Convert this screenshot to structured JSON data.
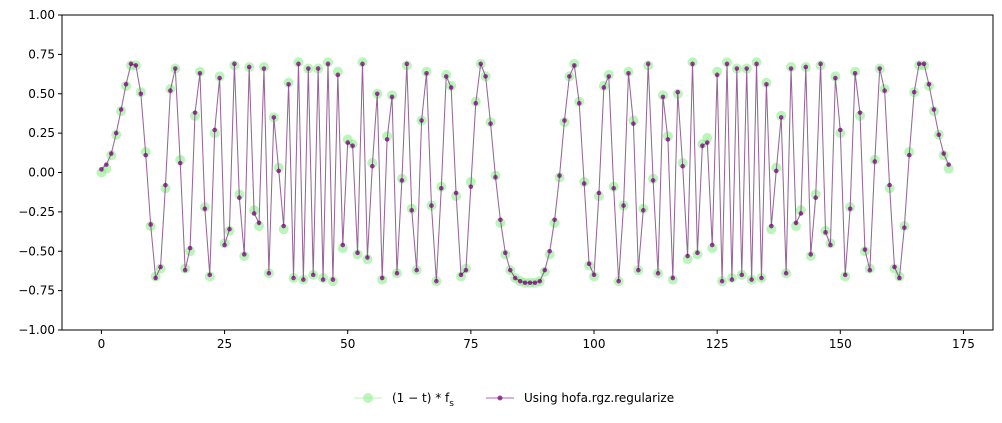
{
  "chart_data": {
    "type": "line",
    "xlabel": "",
    "ylabel": "",
    "xlim": [
      -8,
      181
    ],
    "ylim": [
      -1.0,
      1.0
    ],
    "xticks": [
      0,
      25,
      50,
      75,
      100,
      125,
      150,
      175
    ],
    "yticks": [
      -1.0,
      -0.75,
      -0.5,
      -0.25,
      0.0,
      0.25,
      0.5,
      0.75,
      1.0
    ],
    "xtick_labels": [
      "0",
      "25",
      "50",
      "75",
      "100",
      "125",
      "150",
      "175"
    ],
    "ytick_labels": [
      "−1.00",
      "−0.75",
      "−0.50",
      "−0.25",
      "0.00",
      "0.25",
      "0.50",
      "0.75",
      "1.00"
    ],
    "grid": false,
    "legend_position": "below",
    "x": [
      0,
      1,
      2,
      3,
      4,
      5,
      6,
      7,
      8,
      9,
      10,
      11,
      12,
      13,
      14,
      15,
      16,
      17,
      18,
      19,
      20,
      21,
      22,
      23,
      24,
      25,
      26,
      27,
      28,
      29,
      30,
      31,
      32,
      33,
      34,
      35,
      36,
      37,
      38,
      39,
      40,
      41,
      42,
      43,
      44,
      45,
      46,
      47,
      48,
      49,
      50,
      51,
      52,
      53,
      54,
      55,
      56,
      57,
      58,
      59,
      60,
      61,
      62,
      63,
      64,
      65,
      66,
      67,
      68,
      69,
      70,
      71,
      72,
      73,
      74,
      75,
      76,
      77,
      78,
      79,
      80,
      81,
      82,
      83,
      84,
      85,
      86,
      87,
      88,
      89,
      90,
      91,
      92,
      93,
      94,
      95,
      96,
      97,
      98,
      99,
      100,
      101,
      102,
      103,
      104,
      105,
      106,
      107,
      108,
      109,
      110,
      111,
      112,
      113,
      114,
      115,
      116,
      117,
      118,
      119,
      120,
      121,
      122,
      123,
      124,
      125,
      126,
      127,
      128,
      129,
      130,
      131,
      132,
      133,
      134,
      135,
      136,
      137,
      138,
      139,
      140,
      141,
      142,
      143,
      144,
      145,
      146,
      147,
      148,
      149,
      150,
      151,
      152,
      153,
      154,
      155,
      156,
      157,
      158,
      159,
      160,
      161,
      162,
      163,
      164,
      165,
      166,
      167,
      168,
      169,
      170,
      171,
      172
    ],
    "series": [
      {
        "name": "(1 − t) * f_s",
        "legend_label": "(1 − t) * f",
        "legend_sub": "s",
        "color": "#90ee90",
        "style": "line-with-circle-markers",
        "values": [
          0.0,
          0.025,
          0.11,
          0.24,
          0.39,
          0.55,
          0.68,
          0.68,
          0.51,
          0.13,
          -0.34,
          -0.66,
          -0.61,
          -0.1,
          0.53,
          0.66,
          0.08,
          -0.61,
          -0.5,
          0.36,
          0.64,
          -0.22,
          -0.66,
          0.25,
          0.61,
          -0.45,
          -0.37,
          0.68,
          -0.14,
          -0.53,
          0.67,
          -0.24,
          -0.34,
          0.67,
          -0.64,
          0.35,
          0.03,
          -0.36,
          0.57,
          -0.67,
          0.7,
          -0.68,
          0.66,
          -0.65,
          0.66,
          -0.67,
          0.7,
          -0.69,
          0.64,
          -0.48,
          0.21,
          0.18,
          -0.52,
          0.7,
          -0.55,
          0.06,
          0.5,
          -0.68,
          0.23,
          0.49,
          -0.64,
          -0.04,
          0.68,
          -0.23,
          -0.62,
          0.33,
          0.64,
          -0.21,
          -0.69,
          -0.09,
          0.62,
          0.55,
          -0.15,
          -0.66,
          -0.61,
          -0.06,
          0.45,
          0.69,
          0.61,
          0.32,
          -0.02,
          -0.32,
          -0.52,
          -0.62,
          -0.67,
          -0.69,
          -0.7,
          -0.7,
          -0.7,
          -0.69,
          -0.63,
          -0.52,
          -0.32,
          -0.03,
          0.32,
          0.61,
          0.69,
          0.45,
          -0.06,
          -0.59,
          -0.66,
          -0.15,
          0.55,
          0.62,
          -0.09,
          -0.69,
          -0.21,
          0.64,
          0.33,
          -0.62,
          -0.23,
          0.68,
          -0.04,
          -0.64,
          0.49,
          0.23,
          -0.68,
          0.5,
          0.06,
          -0.55,
          0.7,
          -0.52,
          0.18,
          0.22,
          -0.48,
          0.64,
          -0.69,
          0.7,
          -0.67,
          0.66,
          -0.65,
          0.66,
          -0.68,
          0.7,
          -0.67,
          0.57,
          -0.36,
          0.03,
          0.36,
          -0.64,
          0.67,
          -0.34,
          -0.24,
          0.67,
          -0.53,
          -0.14,
          0.68,
          -0.37,
          -0.45,
          0.61,
          0.25,
          -0.66,
          -0.22,
          0.64,
          0.36,
          -0.5,
          -0.61,
          0.08,
          0.66,
          0.53,
          -0.1,
          -0.61,
          -0.66,
          -0.34,
          0.13,
          0.51,
          0.68,
          0.68,
          0.55,
          0.39,
          0.24,
          0.11,
          0.025
        ]
      },
      {
        "name": "Using hofa.rgz.regularize",
        "legend_label": "Using hofa.rgz.regularize",
        "color": "#800080",
        "style": "line-with-dot-markers",
        "values": [
          0.02,
          0.05,
          0.12,
          0.25,
          0.4,
          0.56,
          0.69,
          0.68,
          0.5,
          0.11,
          -0.33,
          -0.67,
          -0.6,
          -0.08,
          0.52,
          0.66,
          0.06,
          -0.62,
          -0.48,
          0.38,
          0.63,
          -0.23,
          -0.65,
          0.27,
          0.6,
          -0.46,
          -0.36,
          0.69,
          -0.16,
          -0.52,
          0.67,
          -0.26,
          -0.32,
          0.66,
          -0.64,
          0.35,
          0.01,
          -0.34,
          0.56,
          -0.67,
          0.69,
          -0.68,
          0.66,
          -0.65,
          0.66,
          -0.68,
          0.69,
          -0.68,
          0.62,
          -0.46,
          0.19,
          0.17,
          -0.51,
          0.69,
          -0.54,
          0.04,
          0.5,
          -0.67,
          0.21,
          0.48,
          -0.64,
          -0.05,
          0.69,
          -0.24,
          -0.62,
          0.33,
          0.63,
          -0.21,
          -0.69,
          -0.1,
          0.61,
          0.54,
          -0.13,
          -0.65,
          -0.62,
          -0.09,
          0.44,
          0.69,
          0.61,
          0.31,
          -0.03,
          -0.3,
          -0.51,
          -0.62,
          -0.67,
          -0.69,
          -0.7,
          -0.7,
          -0.7,
          -0.69,
          -0.62,
          -0.5,
          -0.3,
          -0.02,
          0.33,
          0.61,
          0.68,
          0.44,
          -0.07,
          -0.58,
          -0.65,
          -0.13,
          0.54,
          0.61,
          -0.1,
          -0.69,
          -0.21,
          0.63,
          0.31,
          -0.62,
          -0.24,
          0.69,
          -0.05,
          -0.64,
          0.48,
          0.21,
          -0.67,
          0.51,
          0.04,
          -0.53,
          0.69,
          -0.51,
          0.17,
          0.19,
          -0.46,
          0.62,
          -0.69,
          0.69,
          -0.68,
          0.66,
          -0.65,
          0.66,
          -0.68,
          0.69,
          -0.67,
          0.56,
          -0.34,
          0.01,
          0.35,
          -0.64,
          0.66,
          -0.32,
          -0.26,
          0.67,
          -0.52,
          -0.16,
          0.69,
          -0.38,
          -0.46,
          0.6,
          0.27,
          -0.65,
          -0.23,
          0.63,
          0.38,
          -0.49,
          -0.62,
          0.07,
          0.66,
          0.52,
          -0.08,
          -0.6,
          -0.67,
          -0.35,
          0.11,
          0.51,
          0.69,
          0.69,
          0.56,
          0.4,
          0.24,
          0.12,
          0.05
        ]
      }
    ]
  }
}
